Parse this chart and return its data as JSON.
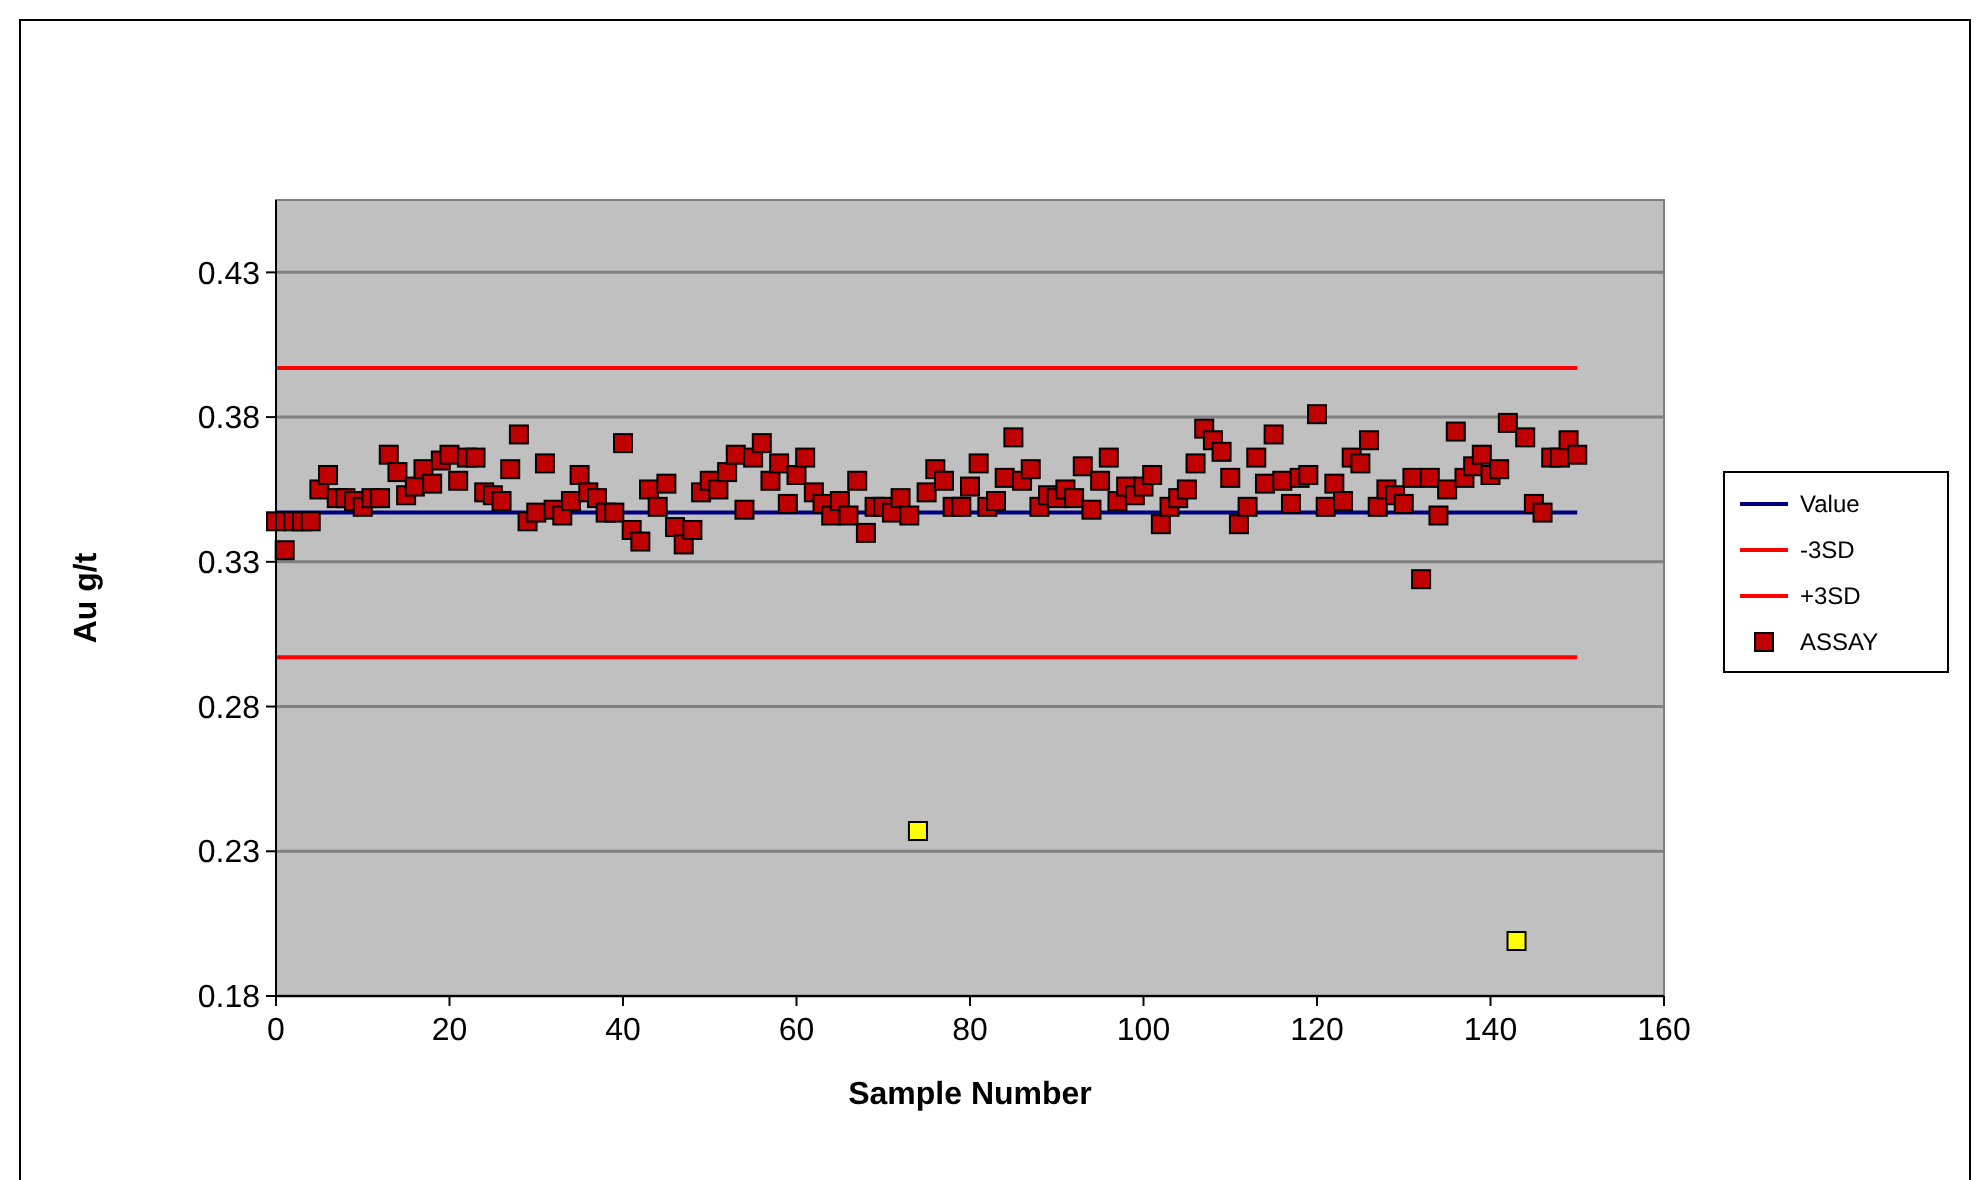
{
  "chart_data": {
    "type": "scatter",
    "xlabel": "Sample Number",
    "ylabel": "Au g/t",
    "xlim": [
      0,
      160
    ],
    "xticks": [
      0,
      20,
      40,
      60,
      80,
      100,
      120,
      140,
      160
    ],
    "ylim": [
      0.18,
      0.455
    ],
    "yticks": [
      0.18,
      0.23,
      0.28,
      0.33,
      0.38,
      0.43
    ],
    "grid": "y",
    "legend": "right",
    "marker": "square",
    "x": [
      0,
      1,
      2,
      3,
      4,
      5,
      6,
      7,
      8,
      9,
      10,
      11,
      12,
      13,
      14,
      15,
      16,
      17,
      18,
      19,
      20,
      21,
      22,
      23,
      24,
      25,
      26,
      27,
      28,
      29,
      30,
      31,
      32,
      33,
      34,
      35,
      36,
      37,
      38,
      39,
      40,
      41,
      42,
      43,
      44,
      45,
      46,
      47,
      48,
      49,
      50,
      51,
      52,
      53,
      54,
      55,
      56,
      57,
      58,
      59,
      60,
      61,
      62,
      63,
      64,
      65,
      66,
      67,
      68,
      69,
      70,
      71,
      72,
      73,
      75,
      76,
      77,
      78,
      79,
      80,
      81,
      82,
      83,
      84,
      85,
      86,
      87,
      88,
      89,
      90,
      91,
      92,
      93,
      94,
      95,
      96,
      97,
      98,
      99,
      100,
      101,
      102,
      103,
      104,
      105,
      106,
      107,
      108,
      109,
      110,
      111,
      112,
      113,
      114,
      115,
      116,
      117,
      118,
      119,
      120,
      121,
      122,
      123,
      124,
      125,
      126,
      127,
      128,
      129,
      130,
      131,
      132,
      133,
      134,
      135,
      136,
      137,
      138,
      139,
      140,
      141,
      142,
      144,
      145,
      146,
      147,
      148,
      149,
      150
    ],
    "series": [
      {
        "type": "line",
        "marker": "none",
        "name": "Value",
        "color": "#000080",
        "x": [
          0,
          150
        ],
        "values": [
          0.347,
          0.347
        ]
      },
      {
        "type": "line",
        "marker": "none",
        "name": "-3SD",
        "color": "#ff0000",
        "x": [
          0,
          150
        ],
        "values": [
          0.297,
          0.297
        ]
      },
      {
        "type": "line",
        "marker": "none",
        "name": "+3SD",
        "color": "#ff0000",
        "x": [
          0,
          150
        ],
        "values": [
          0.397,
          0.397
        ]
      },
      {
        "name": "ASSAY",
        "color": "#c00000",
        "values": [
          0.344,
          0.334,
          0.344,
          0.344,
          0.344,
          0.355,
          0.36,
          0.352,
          0.352,
          0.351,
          0.349,
          0.352,
          0.352,
          0.367,
          0.361,
          0.353,
          0.356,
          0.362,
          0.357,
          0.365,
          0.367,
          0.358,
          0.366,
          0.366,
          0.354,
          0.353,
          0.351,
          0.362,
          0.374,
          0.344,
          0.347,
          0.364,
          0.348,
          0.346,
          0.351,
          0.36,
          0.354,
          0.352,
          0.347,
          0.347,
          0.371,
          0.341,
          0.337,
          0.355,
          0.349,
          0.357,
          0.342,
          0.336,
          0.341,
          0.354,
          0.358,
          0.355,
          0.361,
          0.367,
          0.348,
          0.366,
          0.371,
          0.358,
          0.364,
          0.35,
          0.36,
          0.366,
          0.354,
          0.35,
          0.346,
          0.351,
          0.346,
          0.358,
          0.34,
          0.349,
          0.349,
          0.347,
          0.352,
          0.346,
          0.354,
          0.362,
          0.358,
          0.349,
          0.349,
          0.356,
          0.364,
          0.349,
          0.351,
          0.359,
          0.373,
          0.358,
          0.362,
          0.349,
          0.353,
          0.352,
          0.355,
          0.352,
          0.363,
          0.348,
          0.358,
          0.366,
          0.351,
          0.356,
          0.353,
          0.356,
          0.36,
          0.343,
          0.349,
          0.352,
          0.355,
          0.364,
          0.376,
          0.372,
          0.368,
          0.359,
          0.343,
          0.349,
          0.366,
          0.357,
          0.374,
          0.358,
          0.35,
          0.359,
          0.36,
          0.381,
          0.349,
          0.357,
          0.351,
          0.366,
          0.364,
          0.372,
          0.349,
          0.355,
          0.353,
          0.35,
          0.359,
          0.324,
          0.359,
          0.346,
          0.355,
          0.375,
          0.359,
          0.363,
          0.367,
          0.36,
          0.362,
          0.378,
          0.373,
          0.35,
          0.347,
          0.366,
          0.366,
          0.372,
          0.367
        ]
      },
      {
        "color": "#ffff00",
        "x": [
          74,
          143
        ],
        "values": [
          0.237,
          0.199
        ]
      }
    ]
  }
}
